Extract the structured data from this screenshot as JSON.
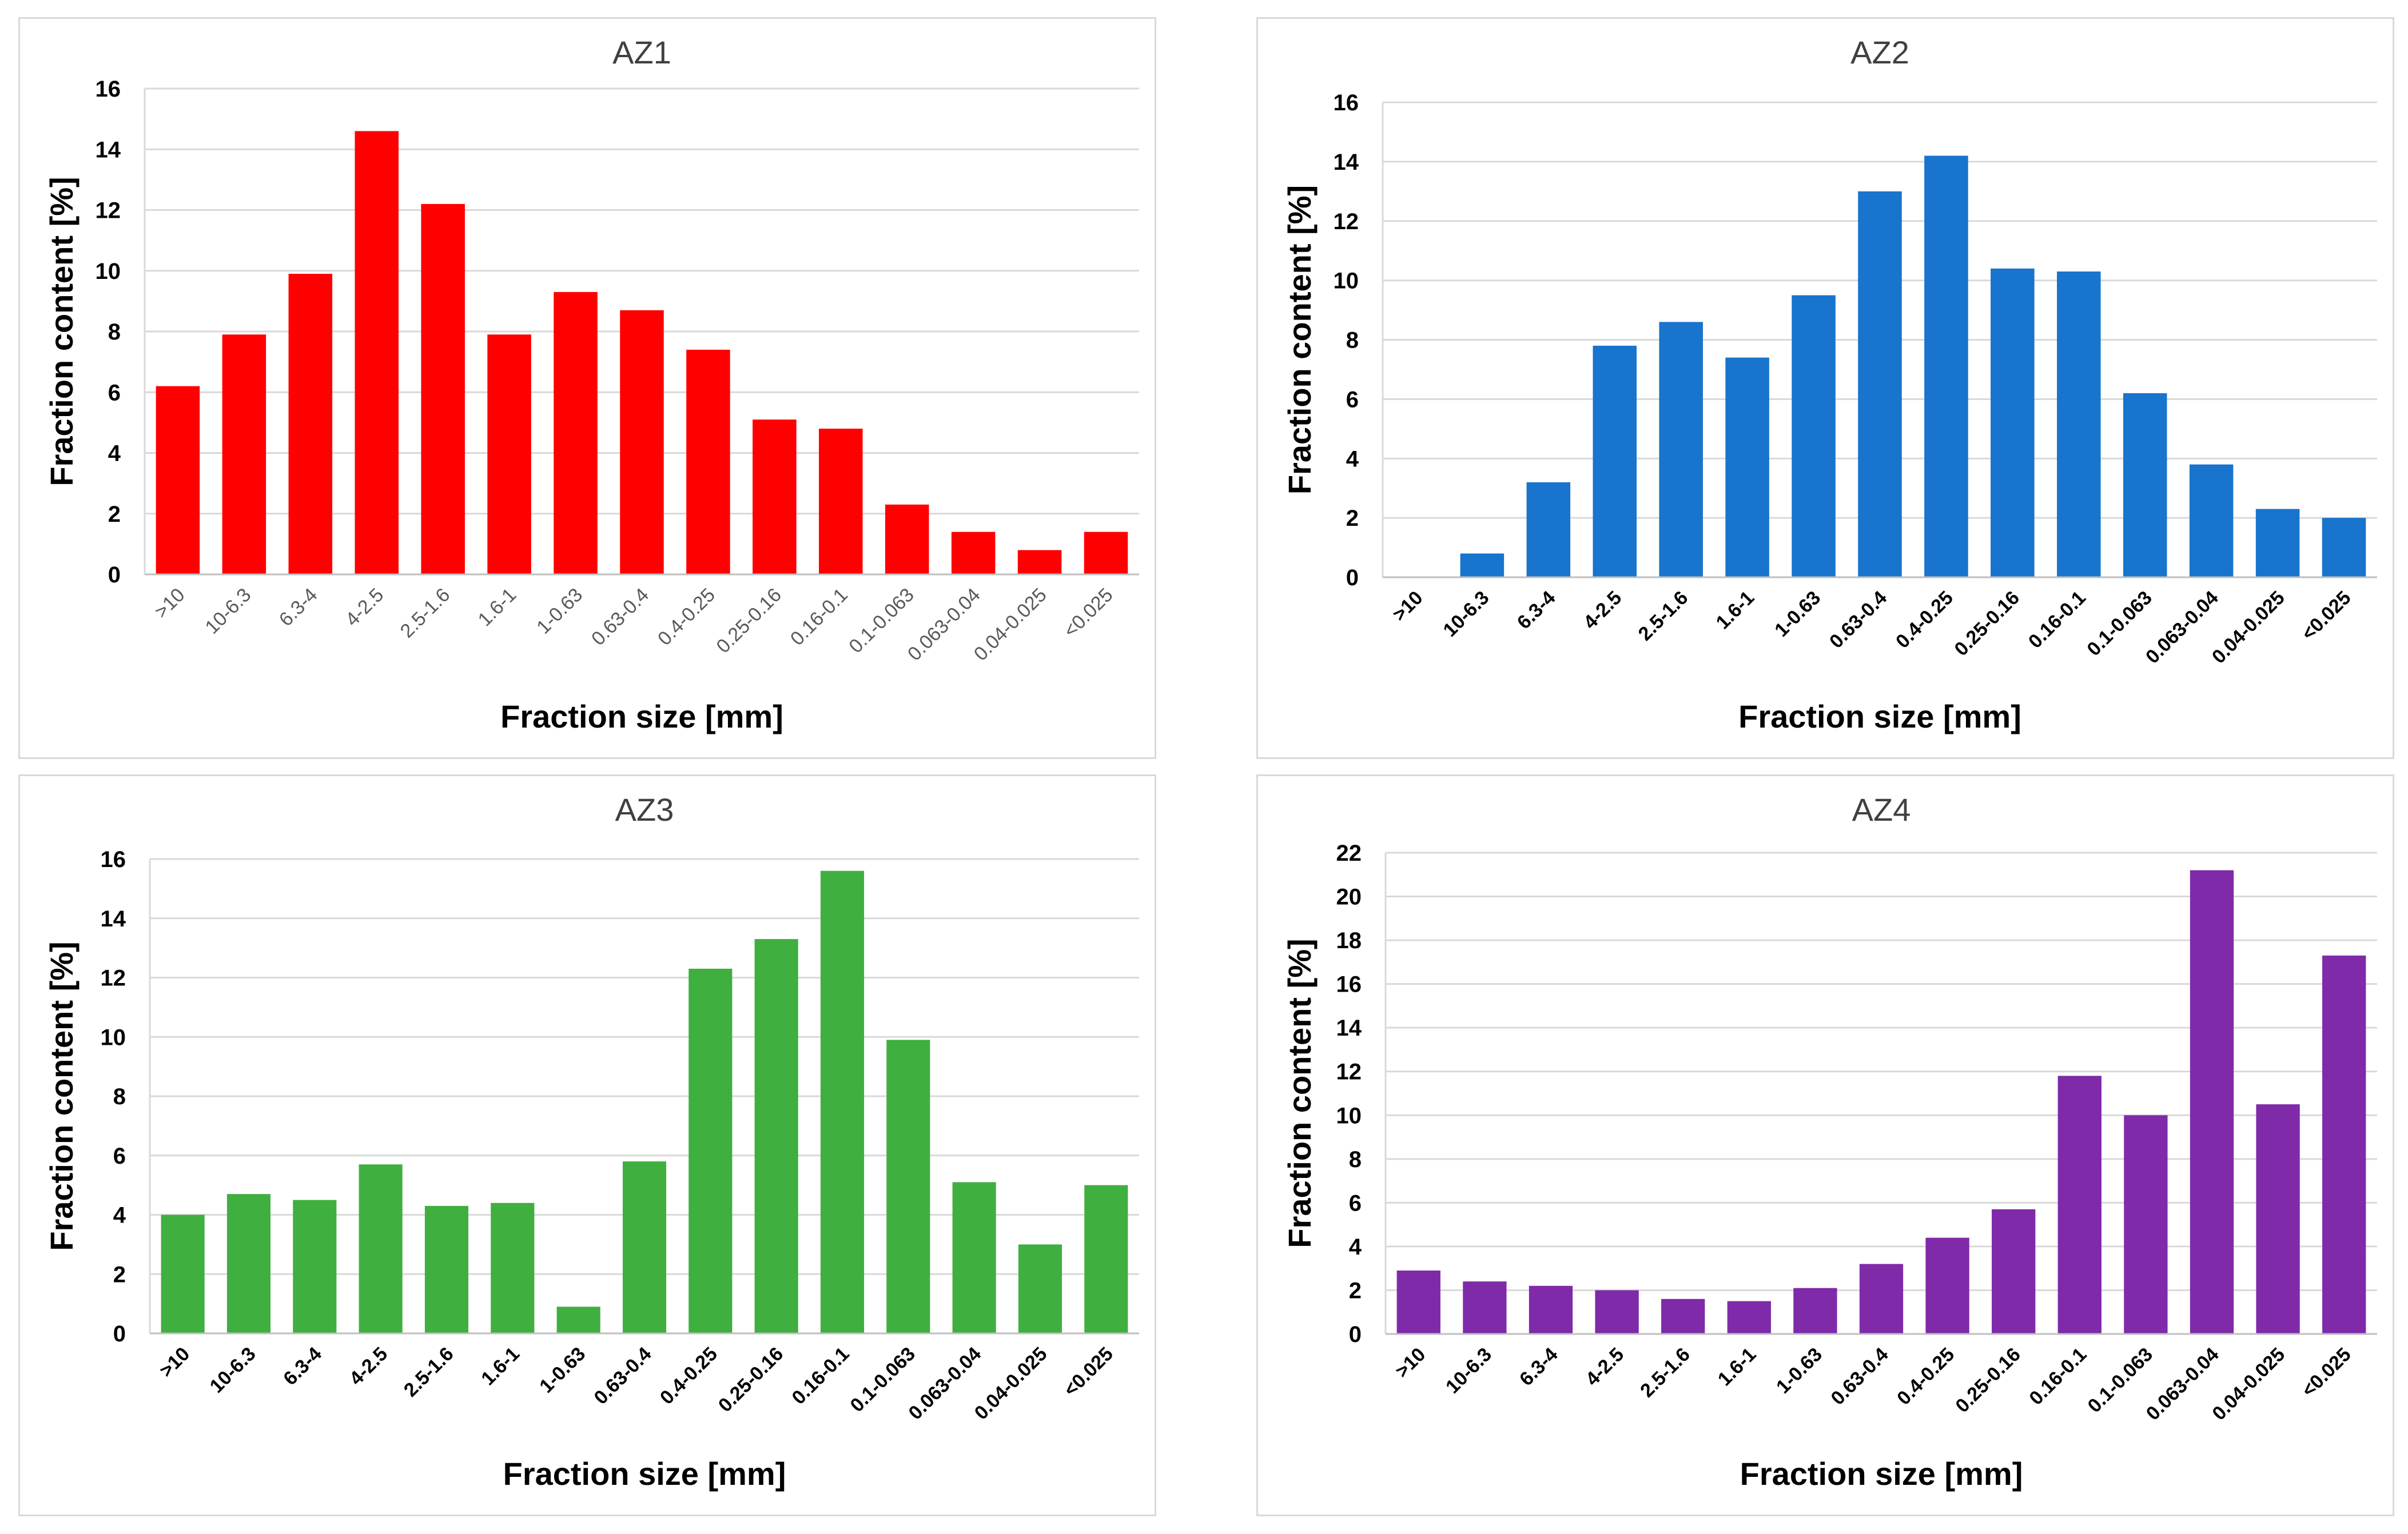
{
  "chart_data": [
    {
      "type": "bar",
      "title": "AZ1",
      "xlabel": "Fraction size [mm]",
      "ylabel": "Fraction content [%]",
      "ylim": [
        0,
        16
      ],
      "yticks": [
        0,
        2,
        4,
        6,
        8,
        10,
        12,
        14,
        16
      ],
      "grid": true,
      "color": "#FF0000",
      "categories": [
        ">10",
        "10-6.3",
        "6.3-4",
        "4-2.5",
        "2.5-1.6",
        "1.6-1",
        "1-0.63",
        "0.63-0.4",
        "0.4-0.25",
        "0.25-0.16",
        "0.16-0.1",
        "0.1-0.063",
        "0.063-0.04",
        "0.04-0.025",
        "<0.025"
      ],
      "values": [
        6.2,
        7.9,
        9.9,
        14.6,
        12.2,
        7.9,
        9.3,
        8.7,
        7.4,
        5.1,
        4.8,
        2.3,
        1.4,
        0.8,
        1.4
      ]
    },
    {
      "type": "bar",
      "title": "AZ2",
      "xlabel": "Fraction size [mm]",
      "ylabel": "Fraction content [%]",
      "ylim": [
        0,
        16
      ],
      "yticks": [
        0,
        2,
        4,
        6,
        8,
        10,
        12,
        14,
        16
      ],
      "grid": true,
      "color": "#1874CD",
      "categories": [
        ">10",
        "10-6.3",
        "6.3-4",
        "4-2.5",
        "2.5-1.6",
        "1.6-1",
        "1-0.63",
        "0.63-0.4",
        "0.4-0.25",
        "0.25-0.16",
        "0.16-0.1",
        "0.1-0.063",
        "0.063-0.04",
        "0.04-0.025",
        "<0.025"
      ],
      "values": [
        0,
        0.8,
        3.2,
        7.8,
        8.6,
        7.4,
        9.5,
        13.0,
        14.2,
        10.4,
        10.3,
        6.2,
        3.8,
        2.3,
        2.0
      ]
    },
    {
      "type": "bar",
      "title": "AZ3",
      "xlabel": "Fraction size [mm]",
      "ylabel": "Fraction content [%]",
      "ylim": [
        0,
        16
      ],
      "yticks": [
        0,
        2,
        4,
        6,
        8,
        10,
        12,
        14,
        16
      ],
      "grid": true,
      "color": "#3FAF3F",
      "categories": [
        ">10",
        "10-6.3",
        "6.3-4",
        "4-2.5",
        "2.5-1.6",
        "1.6-1",
        "1-0.63",
        "0.63-0.4",
        "0.4-0.25",
        "0.25-0.16",
        "0.16-0.1",
        "0.1-0.063",
        "0.063-0.04",
        "0.04-0.025",
        "<0.025"
      ],
      "values": [
        4.0,
        4.7,
        4.5,
        5.7,
        4.3,
        4.4,
        0.9,
        5.8,
        12.3,
        13.3,
        15.6,
        9.9,
        5.1,
        3.0,
        5.0
      ]
    },
    {
      "type": "bar",
      "title": "AZ4",
      "xlabel": "Fraction size [mm]",
      "ylabel": "Fraction content [%]",
      "ylim": [
        0,
        22
      ],
      "yticks": [
        0,
        2,
        4,
        6,
        8,
        10,
        12,
        14,
        16,
        18,
        20,
        22
      ],
      "grid": true,
      "color": "#7F2AA8",
      "categories": [
        ">10",
        "10-6.3",
        "6.3-4",
        "4-2.5",
        "2.5-1.6",
        "1.6-1",
        "1-0.63",
        "0.63-0.4",
        "0.4-0.25",
        "0.25-0.16",
        "0.16-0.1",
        "0.1-0.063",
        "0.063-0.04",
        "0.04-0.025",
        "<0.025"
      ],
      "values": [
        2.9,
        2.4,
        2.2,
        2.0,
        1.6,
        1.5,
        2.1,
        3.2,
        4.4,
        5.7,
        11.8,
        10.0,
        21.2,
        10.5,
        17.3
      ]
    }
  ]
}
